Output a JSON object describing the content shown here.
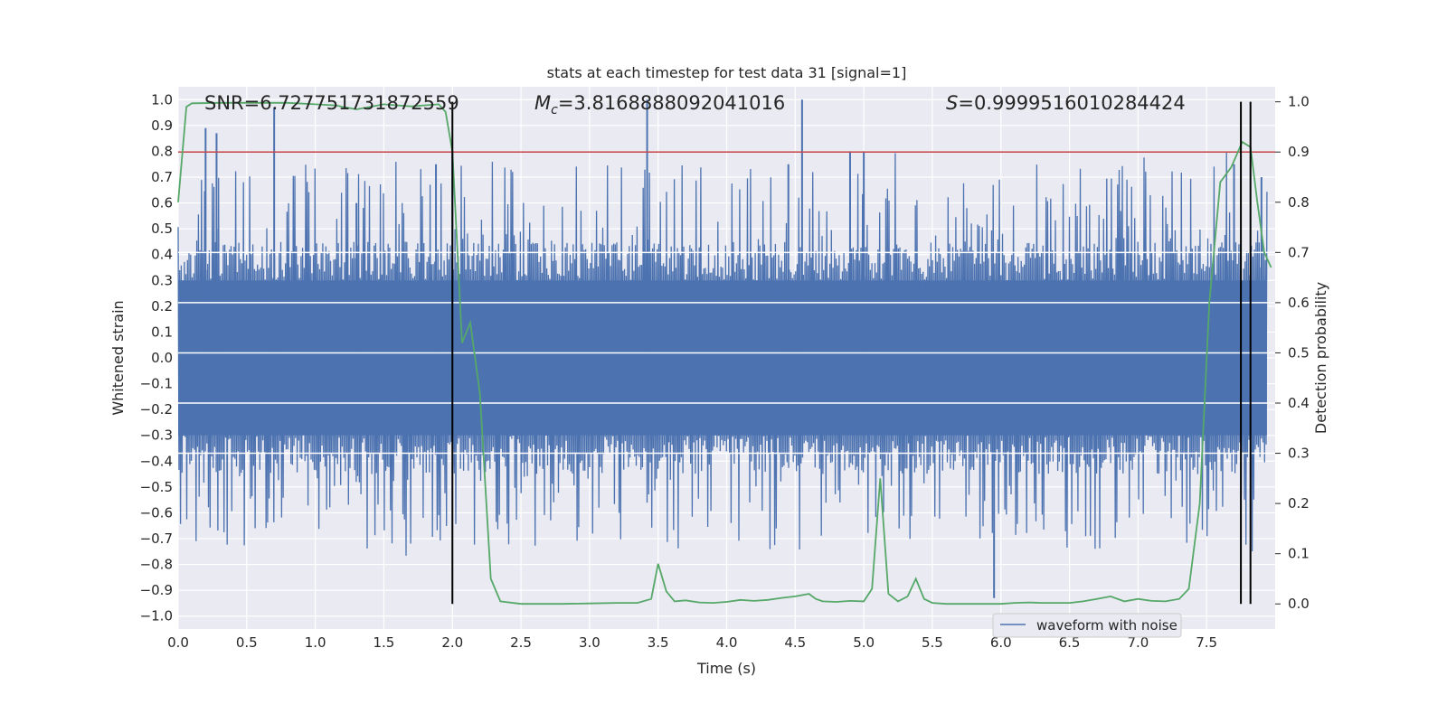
{
  "chart_data": {
    "type": "line",
    "title": "stats at each timestep for test data 31 [signal=1]",
    "xlabel": "Time (s)",
    "ylabel": "Whitened strain",
    "y2label": "Detection probability",
    "xlim": [
      0.0,
      8.0
    ],
    "ylim": [
      -1.05,
      1.05
    ],
    "y2lim": [
      -0.05,
      1.03
    ],
    "xticks": [
      "0.0",
      "0.5",
      "1.0",
      "1.5",
      "2.0",
      "2.5",
      "3.0",
      "3.5",
      "4.0",
      "4.5",
      "5.0",
      "5.5",
      "6.0",
      "6.5",
      "7.0",
      "7.5"
    ],
    "yticks": [
      "1.0",
      "0.9",
      "0.8",
      "0.7",
      "0.6",
      "0.5",
      "0.4",
      "0.3",
      "0.2",
      "0.1",
      "0.0",
      "-0.1",
      "-0.2",
      "-0.3",
      "-0.4",
      "-0.5",
      "-0.6",
      "-0.7",
      "-0.8",
      "-0.9",
      "-1.0"
    ],
    "y2ticks": [
      "1.0",
      "0.9",
      "0.8",
      "0.7",
      "0.6",
      "0.5",
      "0.4",
      "0.3",
      "0.2",
      "0.1",
      "0.0"
    ],
    "grid": true,
    "legend_position": "lower-right",
    "annotations": {
      "snr_label": "SNR=6.727751731872559",
      "mc_prefix": "M",
      "mc_subscript": "c",
      "mc_value": "=3.8168888092041016",
      "s_prefix": "S",
      "s_value": "=0.9999516010284424"
    },
    "series": [
      {
        "name": "waveform with noise",
        "kind": "noise-band",
        "color": "#4c72b0",
        "core_amplitude": 0.3,
        "peak_times": [
          0.2,
          0.28,
          0.7,
          1.3,
          1.88,
          2.0,
          3.42,
          4.45,
          4.55,
          4.9,
          5.0,
          5.95,
          7.7,
          7.9
        ],
        "peak_values": [
          0.89,
          0.87,
          0.97,
          0.6,
          0.75,
          0.8,
          1.0,
          0.75,
          1.0,
          0.8,
          0.8,
          -0.93,
          0.75,
          0.7
        ]
      },
      {
        "kind": "probability",
        "color": "#55a868",
        "x": [
          0.0,
          0.06,
          0.1,
          0.3,
          0.5,
          0.8,
          1.0,
          1.15,
          1.2,
          1.3,
          1.4,
          1.5,
          1.6,
          1.7,
          1.9,
          1.95,
          2.0,
          2.07,
          2.13,
          2.2,
          2.28,
          2.35,
          2.5,
          2.8,
          3.0,
          3.2,
          3.35,
          3.45,
          3.5,
          3.56,
          3.62,
          3.7,
          3.8,
          3.9,
          4.0,
          4.1,
          4.2,
          4.3,
          4.4,
          4.5,
          4.6,
          4.65,
          4.7,
          4.8,
          4.9,
          5.0,
          5.06,
          5.12,
          5.18,
          5.25,
          5.32,
          5.38,
          5.44,
          5.5,
          5.6,
          5.8,
          6.0,
          6.1,
          6.2,
          6.3,
          6.5,
          6.6,
          6.7,
          6.8,
          6.9,
          7.0,
          7.1,
          7.2,
          7.3,
          7.37,
          7.45,
          7.52,
          7.6,
          7.68,
          7.76,
          7.82,
          7.87,
          7.92,
          7.97
        ],
        "y": [
          0.8,
          0.99,
          0.997,
          0.998,
          0.998,
          0.998,
          0.995,
          0.993,
          0.99,
          0.985,
          0.99,
          0.995,
          0.993,
          0.991,
          0.995,
          0.98,
          0.9,
          0.52,
          0.56,
          0.42,
          0.05,
          0.005,
          0.0,
          0.0,
          0.001,
          0.002,
          0.002,
          0.01,
          0.08,
          0.025,
          0.005,
          0.007,
          0.003,
          0.002,
          0.004,
          0.008,
          0.006,
          0.008,
          0.012,
          0.015,
          0.02,
          0.01,
          0.005,
          0.004,
          0.006,
          0.005,
          0.03,
          0.25,
          0.02,
          0.005,
          0.015,
          0.05,
          0.01,
          0.002,
          0.0,
          0.0,
          0.0,
          0.002,
          0.003,
          0.002,
          0.002,
          0.005,
          0.01,
          0.015,
          0.005,
          0.01,
          0.006,
          0.005,
          0.01,
          0.03,
          0.2,
          0.6,
          0.84,
          0.87,
          0.92,
          0.91,
          0.8,
          0.7,
          0.67
        ]
      },
      {
        "kind": "threshold",
        "color": "#c44e52",
        "y": 0.9
      }
    ],
    "vlines": [
      2.0,
      7.75,
      7.82
    ]
  }
}
